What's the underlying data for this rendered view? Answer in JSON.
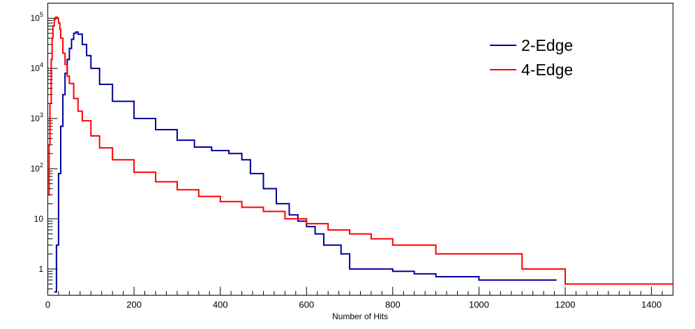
{
  "chart_data": {
    "type": "line",
    "title": "",
    "xlabel": "Number of Hits",
    "ylabel": "",
    "xlim": [
      0,
      1450
    ],
    "ylim": [
      0.3,
      200000
    ],
    "yscale": "log",
    "grid": false,
    "legend_position": "top-right",
    "x_ticks": [
      0,
      200,
      400,
      600,
      800,
      1000,
      1200,
      1400
    ],
    "x_tick_labels": [
      "0",
      "200",
      "400",
      "600",
      "800",
      "1000",
      "1200",
      "1400"
    ],
    "y_ticks": [
      1,
      10,
      100,
      1000,
      10000,
      100000
    ],
    "y_tick_labels": [
      {
        "base": "1",
        "exp": ""
      },
      {
        "base": "10",
        "exp": ""
      },
      {
        "base": "10",
        "exp": "2"
      },
      {
        "base": "10",
        "exp": "3"
      },
      {
        "base": "10",
        "exp": "4"
      },
      {
        "base": "10",
        "exp": "5"
      }
    ],
    "series": [
      {
        "name": "2-Edge",
        "color": "#000099",
        "x": [
          15,
          20,
          25,
          30,
          35,
          40,
          45,
          50,
          55,
          60,
          65,
          70,
          80,
          90,
          100,
          120,
          150,
          200,
          250,
          300,
          340,
          380,
          420,
          450,
          470,
          500,
          530,
          560,
          580,
          600,
          620,
          640,
          660,
          680,
          700,
          720,
          760,
          800,
          850,
          900,
          950,
          1000,
          1050,
          1100,
          1150,
          1180
        ],
        "values": [
          0.35,
          3,
          80,
          700,
          3000,
          8000,
          15000,
          25000,
          38000,
          50000,
          53000,
          48000,
          30000,
          18000,
          10000,
          4800,
          2200,
          1000,
          600,
          370,
          270,
          230,
          200,
          150,
          80,
          40,
          20,
          12,
          9,
          7,
          5,
          3,
          3,
          2,
          1,
          1,
          1,
          0.9,
          0.8,
          0.7,
          0.7,
          0.6,
          0.6,
          0.6,
          0.6,
          0.6
        ]
      },
      {
        "name": "4-Edge",
        "color": "#ff0000",
        "x": [
          1,
          3,
          5,
          8,
          10,
          12,
          15,
          18,
          20,
          22,
          25,
          28,
          30,
          35,
          40,
          45,
          50,
          60,
          70,
          80,
          100,
          120,
          150,
          200,
          250,
          300,
          350,
          400,
          450,
          500,
          550,
          600,
          650,
          700,
          750,
          800,
          850,
          900,
          950,
          1000,
          1050,
          1100,
          1150,
          1200,
          1450
        ],
        "values": [
          30,
          300,
          2000,
          15000,
          40000,
          70000,
          95000,
          105000,
          105000,
          100000,
          80000,
          60000,
          40000,
          20000,
          12000,
          7000,
          5000,
          2500,
          1400,
          900,
          450,
          260,
          150,
          85,
          55,
          38,
          28,
          22,
          17,
          14,
          10,
          8,
          6,
          5,
          4,
          3,
          3,
          2,
          2,
          2,
          2,
          1,
          1,
          0.5,
          0.5
        ]
      }
    ]
  }
}
